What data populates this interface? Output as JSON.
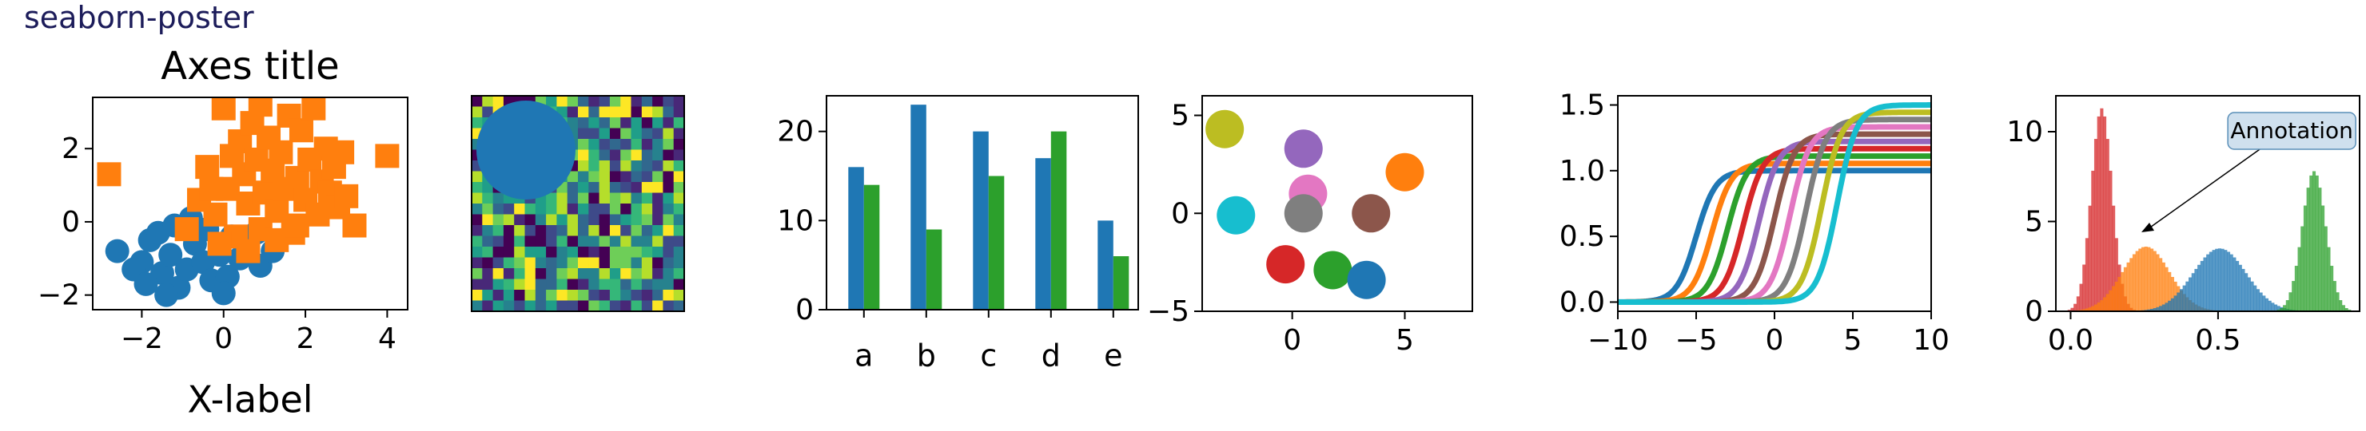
{
  "figure": {
    "title": "seaborn-poster"
  },
  "colors": {
    "tab10": [
      "#1f77b4",
      "#ff7f0e",
      "#2ca02c",
      "#d62728",
      "#9467bd",
      "#8c564b",
      "#e377c2",
      "#7f7f7f",
      "#bcbd22",
      "#17becf"
    ],
    "viridis": [
      "#440154",
      "#482878",
      "#3e4a89",
      "#31688e",
      "#26828e",
      "#1f9e89",
      "#35b779",
      "#6ece58",
      "#b5de2b",
      "#fde725"
    ]
  },
  "chart_data": [
    {
      "type": "scatter",
      "title": "Axes title",
      "xlabel": "X-label",
      "ylabel": "",
      "xlim": [
        -3.2,
        4.5
      ],
      "ylim": [
        -2.4,
        3.4
      ],
      "xticks": [
        -2,
        0,
        2,
        4
      ],
      "yticks": [
        -2,
        0,
        2
      ],
      "series": [
        {
          "marker": "circle",
          "color": "#1f77b4",
          "points": [
            [
              -2.6,
              -0.8
            ],
            [
              -2.0,
              -1.1
            ],
            [
              -1.8,
              -0.5
            ],
            [
              -1.5,
              -1.4
            ],
            [
              -1.3,
              -0.9
            ],
            [
              -1.1,
              -1.8
            ],
            [
              -0.9,
              -1.3
            ],
            [
              -1.6,
              -0.3
            ],
            [
              -0.7,
              -0.6
            ],
            [
              -0.5,
              -1.1
            ],
            [
              -0.3,
              -1.6
            ],
            [
              -0.1,
              -0.9
            ],
            [
              0.1,
              -1.5
            ],
            [
              0.4,
              -1.0
            ],
            [
              0.6,
              -0.7
            ],
            [
              0.9,
              -1.2
            ],
            [
              -0.4,
              -0.2
            ],
            [
              0.2,
              -0.4
            ],
            [
              -1.2,
              -0.1
            ],
            [
              -0.8,
              0.1
            ],
            [
              0.0,
              -1.95
            ],
            [
              1.2,
              -0.8
            ],
            [
              -2.2,
              -1.3
            ],
            [
              0.8,
              -0.3
            ],
            [
              -1.9,
              -1.7
            ],
            [
              -1.4,
              -2.0
            ]
          ]
        },
        {
          "marker": "square",
          "color": "#ff7f0e",
          "points": [
            [
              -2.8,
              1.3
            ],
            [
              -0.9,
              -0.2
            ],
            [
              -0.6,
              0.6
            ],
            [
              -0.4,
              1.5
            ],
            [
              -0.2,
              0.2
            ],
            [
              0.0,
              3.1
            ],
            [
              0.1,
              0.9
            ],
            [
              0.3,
              -0.4
            ],
            [
              0.4,
              2.2
            ],
            [
              0.5,
              1.3
            ],
            [
              0.6,
              0.5
            ],
            [
              0.7,
              2.7
            ],
            [
              0.8,
              1.7
            ],
            [
              0.9,
              -0.2
            ],
            [
              1.0,
              0.8
            ],
            [
              1.1,
              2.3
            ],
            [
              1.2,
              1.4
            ],
            [
              1.3,
              0.3
            ],
            [
              1.4,
              1.9
            ],
            [
              1.5,
              0.9
            ],
            [
              1.6,
              2.9
            ],
            [
              1.7,
              -0.3
            ],
            [
              1.8,
              1.2
            ],
            [
              1.9,
              2.5
            ],
            [
              2.0,
              0.6
            ],
            [
              2.1,
              1.7
            ],
            [
              2.2,
              3.1
            ],
            [
              2.3,
              0.2
            ],
            [
              2.4,
              1.1
            ],
            [
              2.5,
              2.0
            ],
            [
              2.6,
              0.8
            ],
            [
              2.7,
              1.5
            ],
            [
              2.8,
              0.4
            ],
            [
              3.0,
              0.7
            ],
            [
              3.2,
              -0.1
            ],
            [
              4.0,
              1.8
            ],
            [
              0.2,
              1.8
            ],
            [
              -0.3,
              0.9
            ],
            [
              0.9,
              3.2
            ],
            [
              1.3,
              -0.5
            ],
            [
              -0.1,
              -0.6
            ],
            [
              0.6,
              -0.8
            ],
            [
              1.8,
              -0.1
            ],
            [
              2.9,
              1.9
            ]
          ]
        }
      ]
    },
    {
      "type": "heatmap",
      "title": "",
      "xlabel": "",
      "ylabel": "",
      "rows": 20,
      "cols": 20,
      "values": [],
      "overlay": {
        "shape": "circle",
        "color": "#1f77b4"
      }
    },
    {
      "type": "bar",
      "title": "",
      "xlabel": "",
      "ylabel": "",
      "categories": [
        "a",
        "b",
        "c",
        "d",
        "e"
      ],
      "ylim": [
        0,
        24
      ],
      "yticks": [
        0,
        10,
        20
      ],
      "series": [
        {
          "color": "#1f77b4",
          "values": [
            16,
            23,
            20,
            17,
            10
          ]
        },
        {
          "color": "#2ca02c",
          "values": [
            14,
            9,
            15,
            20,
            6
          ]
        }
      ]
    },
    {
      "type": "scatter",
      "title": "",
      "xlabel": "",
      "ylabel": "",
      "xlim": [
        -4,
        8
      ],
      "ylim": [
        -5,
        6
      ],
      "xticks": [
        0,
        5
      ],
      "yticks": [
        -5,
        0,
        5
      ],
      "points": [
        {
          "x": -3.0,
          "y": 4.3,
          "color": "#bcbd22"
        },
        {
          "x": 0.5,
          "y": 3.3,
          "color": "#9467bd"
        },
        {
          "x": 5.0,
          "y": 2.1,
          "color": "#ff7f0e"
        },
        {
          "x": 0.7,
          "y": 1.0,
          "color": "#e377c2"
        },
        {
          "x": -2.5,
          "y": -0.1,
          "color": "#17becf"
        },
        {
          "x": 0.5,
          "y": 0.0,
          "color": "#7f7f7f"
        },
        {
          "x": 3.5,
          "y": 0.0,
          "color": "#8c564b"
        },
        {
          "x": -0.3,
          "y": -2.6,
          "color": "#d62728"
        },
        {
          "x": 1.8,
          "y": -2.9,
          "color": "#2ca02c"
        },
        {
          "x": 3.3,
          "y": -3.4,
          "color": "#1f77b4"
        }
      ]
    },
    {
      "type": "line",
      "title": "",
      "xlabel": "",
      "ylabel": "",
      "xlim": [
        -10,
        10
      ],
      "ylim": [
        -0.07,
        1.57
      ],
      "xticks": [
        -10,
        -5,
        0,
        5,
        10
      ],
      "yticks": [
        0.0,
        0.5,
        1.0,
        1.5
      ],
      "series": [
        {
          "color": "#1f77b4",
          "center": -5.0,
          "height": 1.0
        },
        {
          "color": "#ff7f0e",
          "center": -4.0,
          "height": 1.055
        },
        {
          "color": "#2ca02c",
          "center": -3.0,
          "height": 1.111
        },
        {
          "color": "#d62728",
          "center": -2.0,
          "height": 1.167
        },
        {
          "color": "#9467bd",
          "center": -1.0,
          "height": 1.222
        },
        {
          "color": "#8c564b",
          "center": 0.0,
          "height": 1.278
        },
        {
          "color": "#e377c2",
          "center": 1.0,
          "height": 1.333
        },
        {
          "color": "#7f7f7f",
          "center": 2.0,
          "height": 1.389
        },
        {
          "color": "#bcbd22",
          "center": 3.0,
          "height": 1.444
        },
        {
          "color": "#17becf",
          "center": 4.0,
          "height": 1.5
        }
      ]
    },
    {
      "type": "histogram",
      "title": "",
      "xlabel": "",
      "ylabel": "",
      "xlim": [
        -0.05,
        0.98
      ],
      "ylim": [
        0,
        12
      ],
      "xticks": [
        0.0,
        0.5
      ],
      "yticks": [
        0,
        5,
        10
      ],
      "series": [
        {
          "color": "#d62728",
          "peak_x": 0.1,
          "peak_y": 11.3,
          "spread": 0.035
        },
        {
          "color": "#ff7f0e",
          "peak_x": 0.25,
          "peak_y": 3.6,
          "spread": 0.08
        },
        {
          "color": "#1f77b4",
          "peak_x": 0.5,
          "peak_y": 3.5,
          "spread": 0.09
        },
        {
          "color": "#2ca02c",
          "peak_x": 0.82,
          "peak_y": 7.8,
          "spread": 0.04
        }
      ],
      "annotation": {
        "text": "Annotation",
        "x": 0.24,
        "y": 4.4,
        "label_x": 0.75,
        "label_y": 10.0
      }
    }
  ]
}
